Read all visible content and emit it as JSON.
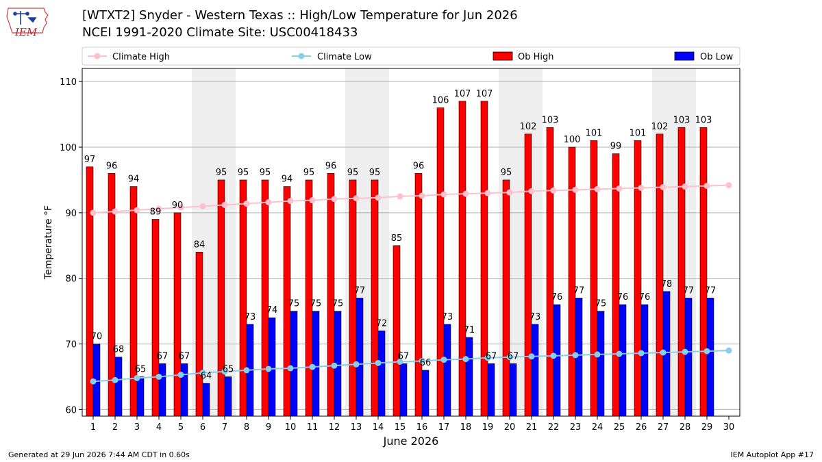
{
  "header": {
    "title_line1": "[WTXT2] Snyder - Western Texas :: High/Low Temperature for Jun 2026",
    "title_line2": "NCEI 1991-2020 Climate Site: USC00418433",
    "logo_text": "IEM"
  },
  "footer": {
    "generated": "Generated at 29 Jun 2026 7:44 AM CDT in 0.60s",
    "app": "IEM Autoplot App #17"
  },
  "colors": {
    "ob_high": "#ff0000",
    "ob_low": "#0000ff",
    "climate_high": "#ffc0cb",
    "climate_low": "#87ceeb",
    "weekend_shade": "#eeeeee",
    "grid": "#b0b0b0"
  },
  "chart_data": {
    "type": "bar",
    "xlabel": "June 2026",
    "ylabel": "Temperature °F",
    "ylim": [
      59,
      112
    ],
    "yticks": [
      60,
      70,
      80,
      90,
      100,
      110
    ],
    "grid": "horizontal",
    "legend_position": "top",
    "weekend_days": [
      6,
      7,
      13,
      14,
      20,
      21,
      27,
      28
    ],
    "x": [
      1,
      2,
      3,
      4,
      5,
      6,
      7,
      8,
      9,
      10,
      11,
      12,
      13,
      14,
      15,
      16,
      17,
      18,
      19,
      20,
      21,
      22,
      23,
      24,
      25,
      26,
      27,
      28,
      29,
      30
    ],
    "series": [
      {
        "name": "Climate High",
        "kind": "line",
        "values": [
          90.0,
          90.2,
          90.4,
          90.6,
          90.8,
          91.0,
          91.2,
          91.4,
          91.6,
          91.8,
          91.9,
          92.1,
          92.2,
          92.3,
          92.5,
          92.6,
          92.8,
          92.9,
          93.0,
          93.1,
          93.3,
          93.4,
          93.5,
          93.6,
          93.7,
          93.8,
          93.9,
          94.0,
          94.1,
          94.2
        ]
      },
      {
        "name": "Climate Low",
        "kind": "line",
        "values": [
          64.3,
          64.5,
          64.8,
          65.0,
          65.3,
          65.6,
          65.8,
          66.0,
          66.2,
          66.3,
          66.5,
          66.7,
          66.9,
          67.1,
          67.3,
          67.4,
          67.6,
          67.7,
          67.9,
          68.0,
          68.1,
          68.2,
          68.3,
          68.4,
          68.5,
          68.6,
          68.7,
          68.8,
          68.9,
          69.0
        ]
      },
      {
        "name": "Ob High",
        "kind": "bar",
        "values": [
          97,
          96,
          94,
          89,
          90,
          84,
          95,
          95,
          95,
          94,
          95,
          96,
          95,
          95,
          85,
          96,
          106,
          107,
          107,
          95,
          102,
          103,
          100,
          101,
          99,
          101,
          102,
          103,
          103,
          null
        ]
      },
      {
        "name": "Ob Low",
        "kind": "bar",
        "values": [
          70,
          68,
          65,
          67,
          67,
          64,
          65,
          73,
          74,
          75,
          75,
          75,
          77,
          72,
          67,
          66,
          73,
          71,
          67,
          67,
          73,
          76,
          77,
          75,
          76,
          76,
          78,
          77,
          77,
          null
        ]
      }
    ]
  }
}
